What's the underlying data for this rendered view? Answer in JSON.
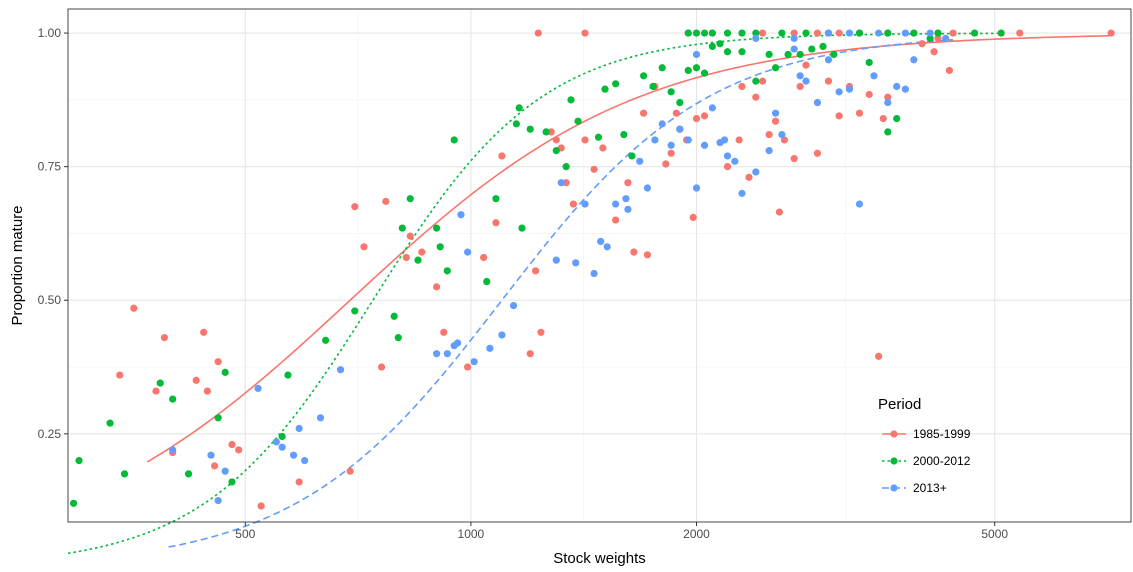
{
  "chart_data": {
    "type": "scatter",
    "xlabel": "Stock weights",
    "ylabel": "Proportion mature",
    "x_scale": "log",
    "xlim": [
      290,
      7600
    ],
    "ylim": [
      0.085,
      1.045
    ],
    "x_ticks": [
      500,
      1000,
      2000,
      5000
    ],
    "x_tick_labels": [
      "500",
      "1000",
      "2000",
      "5000"
    ],
    "y_ticks": [
      0.25,
      0.5,
      0.75,
      1.0
    ],
    "y_tick_labels": [
      "0.25",
      "0.50",
      "0.75",
      "1.00"
    ],
    "grid": true,
    "legend": {
      "title": "Period",
      "position": "right-bottom",
      "entries": [
        "1985-1999",
        "2000-2012",
        "2013+"
      ]
    },
    "series": [
      {
        "name": "1985-1999",
        "color": "#F8766D",
        "line_style": "solid",
        "curve": {
          "x50": 690,
          "slope": 2.25,
          "x_range": [
            370,
            7100
          ]
        },
        "points": [
          [
            340,
            0.36
          ],
          [
            355,
            0.485
          ],
          [
            380,
            0.33
          ],
          [
            390,
            0.43
          ],
          [
            400,
            0.215
          ],
          [
            430,
            0.35
          ],
          [
            440,
            0.44
          ],
          [
            445,
            0.33
          ],
          [
            455,
            0.19
          ],
          [
            460,
            0.385
          ],
          [
            480,
            0.23
          ],
          [
            490,
            0.22
          ],
          [
            525,
            0.115
          ],
          [
            590,
            0.16
          ],
          [
            690,
            0.18
          ],
          [
            700,
            0.675
          ],
          [
            720,
            0.6
          ],
          [
            760,
            0.375
          ],
          [
            770,
            0.685
          ],
          [
            820,
            0.58
          ],
          [
            830,
            0.62
          ],
          [
            860,
            0.59
          ],
          [
            900,
            0.525
          ],
          [
            920,
            0.44
          ],
          [
            990,
            0.375
          ],
          [
            1040,
            0.58
          ],
          [
            1080,
            0.645
          ],
          [
            1100,
            0.77
          ],
          [
            1200,
            0.4
          ],
          [
            1220,
            0.555
          ],
          [
            1240,
            0.44
          ],
          [
            1280,
            0.815
          ],
          [
            1300,
            0.8
          ],
          [
            1320,
            0.785
          ],
          [
            1340,
            0.72
          ],
          [
            1370,
            0.68
          ],
          [
            1420,
            0.8
          ],
          [
            1460,
            0.745
          ],
          [
            1500,
            0.785
          ],
          [
            1560,
            0.65
          ],
          [
            1620,
            0.72
          ],
          [
            1650,
            0.59
          ],
          [
            1700,
            0.85
          ],
          [
            1720,
            0.585
          ],
          [
            1760,
            0.9
          ],
          [
            1820,
            0.755
          ],
          [
            1850,
            0.775
          ],
          [
            1880,
            0.85
          ],
          [
            1900,
            0.82
          ],
          [
            1940,
            0.8
          ],
          [
            1980,
            0.655
          ],
          [
            2000,
            0.84
          ],
          [
            2050,
            0.845
          ],
          [
            2200,
            0.75
          ],
          [
            2280,
            0.8
          ],
          [
            2300,
            0.9
          ],
          [
            2350,
            0.73
          ],
          [
            2400,
            0.88
          ],
          [
            2450,
            0.91
          ],
          [
            2500,
            0.81
          ],
          [
            2550,
            0.835
          ],
          [
            2580,
            0.665
          ],
          [
            2620,
            0.8
          ],
          [
            2700,
            0.765
          ],
          [
            2750,
            0.9
          ],
          [
            2800,
            0.94
          ],
          [
            2900,
            0.775
          ],
          [
            3000,
            0.91
          ],
          [
            3100,
            0.845
          ],
          [
            3200,
            0.9
          ],
          [
            3300,
            0.85
          ],
          [
            3400,
            0.885
          ],
          [
            3500,
            0.395
          ],
          [
            3550,
            0.84
          ],
          [
            3600,
            0.88
          ],
          [
            1230,
            1.0
          ],
          [
            1420,
            1.0
          ],
          [
            1950,
            1.0
          ],
          [
            2100,
            1.0
          ],
          [
            2450,
            1.0
          ],
          [
            2700,
            1.0
          ],
          [
            2900,
            1.0
          ],
          [
            3100,
            1.0
          ],
          [
            3300,
            1.0
          ],
          [
            3600,
            1.0
          ],
          [
            3900,
            1.0
          ],
          [
            4200,
            1.0
          ],
          [
            4400,
            1.0
          ],
          [
            5400,
            1.0
          ],
          [
            7150,
            1.0
          ],
          [
            4000,
            0.98
          ],
          [
            4200,
            0.99
          ],
          [
            4350,
            0.93
          ],
          [
            4150,
            0.965
          ]
        ]
      },
      {
        "name": "2000-2012",
        "color": "#00BA38",
        "line_style": "dotted",
        "curve": {
          "x50": 740,
          "slope": 3.85,
          "x_range": [
            290,
            5100
          ]
        },
        "points": [
          [
            295,
            0.12
          ],
          [
            300,
            0.2
          ],
          [
            330,
            0.27
          ],
          [
            345,
            0.175
          ],
          [
            385,
            0.345
          ],
          [
            400,
            0.315
          ],
          [
            420,
            0.175
          ],
          [
            460,
            0.28
          ],
          [
            470,
            0.365
          ],
          [
            480,
            0.16
          ],
          [
            560,
            0.245
          ],
          [
            570,
            0.36
          ],
          [
            640,
            0.425
          ],
          [
            700,
            0.48
          ],
          [
            790,
            0.47
          ],
          [
            800,
            0.43
          ],
          [
            810,
            0.635
          ],
          [
            830,
            0.69
          ],
          [
            850,
            0.575
          ],
          [
            900,
            0.635
          ],
          [
            910,
            0.6
          ],
          [
            930,
            0.555
          ],
          [
            950,
            0.8
          ],
          [
            1050,
            0.535
          ],
          [
            1080,
            0.69
          ],
          [
            1150,
            0.83
          ],
          [
            1160,
            0.86
          ],
          [
            1170,
            0.635
          ],
          [
            1200,
            0.82
          ],
          [
            1260,
            0.815
          ],
          [
            1300,
            0.78
          ],
          [
            1340,
            0.75
          ],
          [
            1360,
            0.875
          ],
          [
            1390,
            0.835
          ],
          [
            1480,
            0.805
          ],
          [
            1510,
            0.895
          ],
          [
            1560,
            0.905
          ],
          [
            1600,
            0.81
          ],
          [
            1640,
            0.77
          ],
          [
            1700,
            0.92
          ],
          [
            1750,
            0.9
          ],
          [
            1800,
            0.935
          ],
          [
            1850,
            0.89
          ],
          [
            1900,
            0.87
          ],
          [
            1950,
            0.93
          ],
          [
            2000,
            0.935
          ],
          [
            2050,
            0.925
          ],
          [
            2100,
            0.975
          ],
          [
            2150,
            0.98
          ],
          [
            2200,
            0.965
          ],
          [
            2300,
            0.965
          ],
          [
            2400,
            0.91
          ],
          [
            2500,
            0.96
          ],
          [
            2550,
            0.935
          ],
          [
            2650,
            0.96
          ],
          [
            2750,
            0.96
          ],
          [
            2850,
            0.97
          ],
          [
            2950,
            0.975
          ],
          [
            3050,
            0.96
          ],
          [
            3400,
            0.945
          ],
          [
            3600,
            0.815
          ],
          [
            3700,
            0.84
          ],
          [
            4100,
            0.99
          ],
          [
            1950,
            1.0
          ],
          [
            2000,
            1.0
          ],
          [
            2050,
            1.0
          ],
          [
            2100,
            1.0
          ],
          [
            2200,
            1.0
          ],
          [
            2300,
            1.0
          ],
          [
            2400,
            1.0
          ],
          [
            2600,
            1.0
          ],
          [
            2800,
            1.0
          ],
          [
            3000,
            1.0
          ],
          [
            3300,
            1.0
          ],
          [
            3600,
            1.0
          ],
          [
            3900,
            1.0
          ],
          [
            4200,
            1.0
          ],
          [
            4700,
            1.0
          ],
          [
            5100,
            1.0
          ]
        ]
      },
      {
        "name": "2013+",
        "color": "#619CFF",
        "line_style": "dashed",
        "curve": {
          "x50": 1100,
          "slope": 3.15,
          "x_range": [
            395,
            4400
          ]
        },
        "points": [
          [
            400,
            0.22
          ],
          [
            450,
            0.21
          ],
          [
            470,
            0.18
          ],
          [
            460,
            0.125
          ],
          [
            520,
            0.335
          ],
          [
            550,
            0.235
          ],
          [
            560,
            0.225
          ],
          [
            580,
            0.21
          ],
          [
            590,
            0.26
          ],
          [
            600,
            0.2
          ],
          [
            630,
            0.28
          ],
          [
            670,
            0.37
          ],
          [
            900,
            0.4
          ],
          [
            930,
            0.4
          ],
          [
            950,
            0.415
          ],
          [
            960,
            0.42
          ],
          [
            970,
            0.66
          ],
          [
            990,
            0.59
          ],
          [
            1010,
            0.385
          ],
          [
            1060,
            0.41
          ],
          [
            1100,
            0.435
          ],
          [
            1140,
            0.49
          ],
          [
            1300,
            0.575
          ],
          [
            1320,
            0.72
          ],
          [
            1380,
            0.57
          ],
          [
            1420,
            0.68
          ],
          [
            1460,
            0.55
          ],
          [
            1490,
            0.61
          ],
          [
            1520,
            0.6
          ],
          [
            1560,
            0.68
          ],
          [
            1610,
            0.69
          ],
          [
            1620,
            0.67
          ],
          [
            1680,
            0.76
          ],
          [
            1720,
            0.71
          ],
          [
            1760,
            0.8
          ],
          [
            1800,
            0.83
          ],
          [
            1850,
            0.79
          ],
          [
            1900,
            0.82
          ],
          [
            1950,
            0.8
          ],
          [
            2000,
            0.71
          ],
          [
            2050,
            0.79
          ],
          [
            2100,
            0.86
          ],
          [
            2150,
            0.795
          ],
          [
            2180,
            0.8
          ],
          [
            2200,
            0.77
          ],
          [
            2250,
            0.76
          ],
          [
            2300,
            0.7
          ],
          [
            2400,
            0.74
          ],
          [
            2500,
            0.78
          ],
          [
            2550,
            0.85
          ],
          [
            2600,
            0.81
          ],
          [
            2700,
            0.97
          ],
          [
            2750,
            0.92
          ],
          [
            2800,
            0.91
          ],
          [
            2900,
            0.87
          ],
          [
            3000,
            0.95
          ],
          [
            3100,
            0.89
          ],
          [
            3200,
            0.895
          ],
          [
            3300,
            0.68
          ],
          [
            3450,
            0.92
          ],
          [
            3600,
            0.87
          ],
          [
            3700,
            0.9
          ],
          [
            3800,
            0.895
          ],
          [
            3900,
            0.95
          ],
          [
            2000,
            0.96
          ],
          [
            2400,
            0.99
          ],
          [
            2700,
            0.99
          ],
          [
            3000,
            1.0
          ],
          [
            3200,
            1.0
          ],
          [
            3500,
            1.0
          ],
          [
            3800,
            1.0
          ],
          [
            4100,
            1.0
          ],
          [
            4300,
            0.99
          ]
        ]
      }
    ]
  }
}
